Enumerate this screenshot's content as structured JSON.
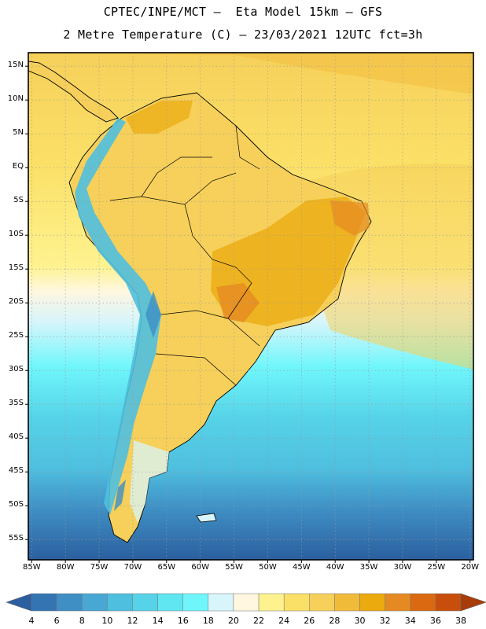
{
  "title": {
    "line1": "CPTEC/INPE/MCT –  Eta Model 15km – GFS",
    "line2": "2 Metre Temperature (C) – 23/03/2021 12UTC fct=3h"
  },
  "map_data": {
    "variable": "2 Metre Temperature",
    "units": "C",
    "lat_labels": [
      "15N",
      "10N",
      "5N",
      "EQ",
      "5S",
      "10S",
      "15S",
      "20S",
      "25S",
      "30S",
      "35S",
      "40S",
      "45S",
      "50S",
      "55S"
    ],
    "lat_values": [
      15,
      10,
      5,
      0,
      -5,
      -10,
      -15,
      -20,
      -25,
      -30,
      -35,
      -40,
      -45,
      -50,
      -55
    ],
    "lon_labels": [
      "85W",
      "80W",
      "75W",
      "70W",
      "65W",
      "60W",
      "55W",
      "50W",
      "45W",
      "40W",
      "35W",
      "30W",
      "25W",
      "20W"
    ],
    "lon_values": [
      -85,
      -80,
      -75,
      -70,
      -65,
      -60,
      -55,
      -50,
      -45,
      -40,
      -35,
      -30,
      -25,
      -20
    ],
    "extent": {
      "lon_min": -85.5,
      "lon_max": -19.5,
      "lat_min": -58,
      "lat_max": 17
    }
  },
  "colorbar": {
    "labels": [
      "4",
      "6",
      "8",
      "10",
      "12",
      "14",
      "16",
      "18",
      "20",
      "22",
      "24",
      "26",
      "28",
      "30",
      "32",
      "34",
      "36",
      "38"
    ],
    "colors": [
      "#2b5f9f",
      "#3474b3",
      "#3f8fc4",
      "#48a7d3",
      "#4fbfdf",
      "#56d3e8",
      "#5fe6f1",
      "#6ff6fb",
      "#d8f5fb",
      "#fff7e0",
      "#fef28f",
      "#fbe067",
      "#f6d05a",
      "#f1bb3a",
      "#ebaa0e",
      "#e58a22",
      "#db6911",
      "#c84f0b",
      "#a83c08"
    ]
  },
  "colors": {
    "frame": "#000000",
    "coast": "#000000",
    "grid": "#9a9a9a"
  }
}
